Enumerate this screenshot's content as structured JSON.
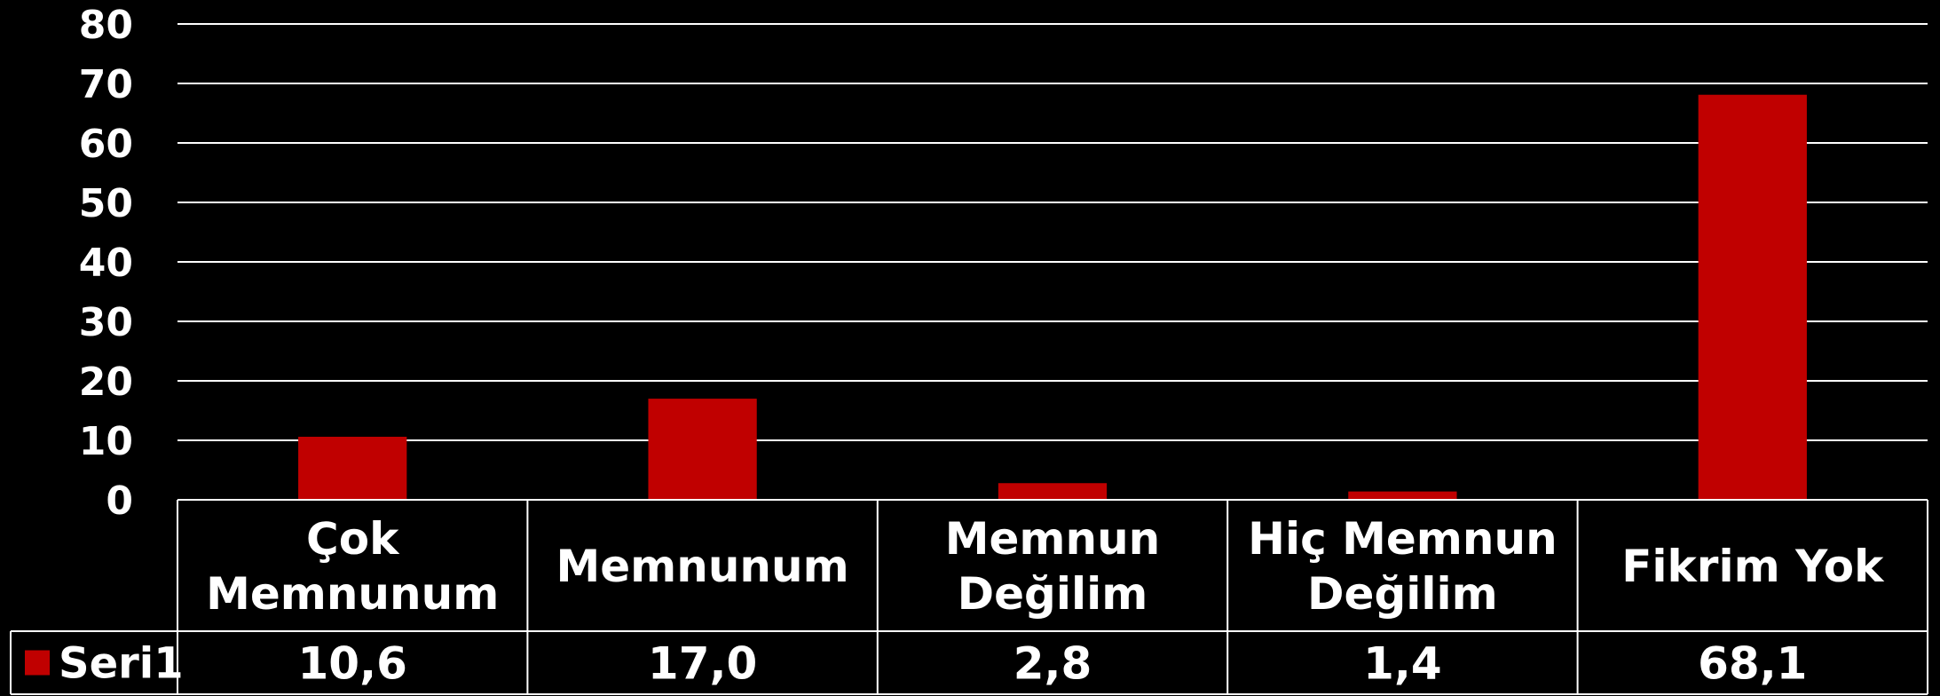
{
  "chart_data": {
    "type": "bar",
    "categories": [
      [
        "Çok",
        "Memnunum"
      ],
      [
        "Memnunum"
      ],
      [
        "Memnun",
        "Değilim"
      ],
      [
        "Hiç Memnun",
        "Değilim"
      ],
      [
        "Fikrim Yok"
      ]
    ],
    "series": [
      {
        "name": "Seri1",
        "values": [
          10.6,
          17.0,
          2.8,
          1.4,
          68.1
        ],
        "labels": [
          "10,6",
          "17,0",
          "2,8",
          "1,4",
          "68,1"
        ],
        "color": "#c00000"
      }
    ],
    "ylim": [
      0,
      80
    ],
    "yticks": [
      0,
      10,
      20,
      30,
      40,
      50,
      60,
      70,
      80
    ],
    "grid": true,
    "data_table": true,
    "background": "#000000",
    "gridline_color": "#ffffff"
  }
}
